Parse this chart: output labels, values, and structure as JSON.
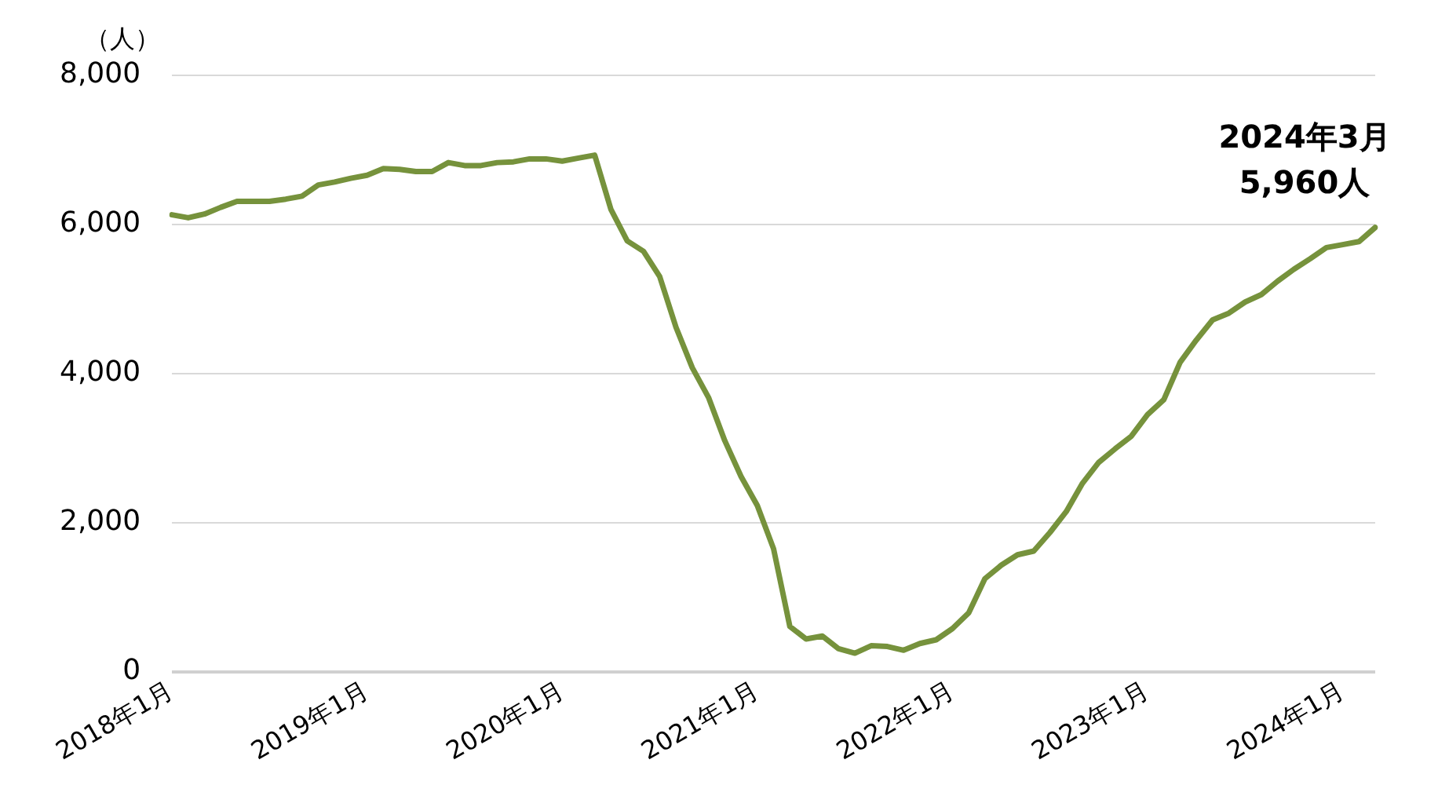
{
  "chart_data": {
    "type": "line",
    "ylabel": "（人）",
    "categories": [
      "2018年1月",
      null,
      null,
      null,
      null,
      null,
      null,
      null,
      null,
      null,
      null,
      null,
      "2019年1月",
      null,
      null,
      null,
      null,
      null,
      null,
      null,
      null,
      null,
      null,
      null,
      "2020年1月",
      null,
      null,
      null,
      null,
      null,
      null,
      null,
      null,
      null,
      null,
      null,
      "2021年1月",
      null,
      null,
      null,
      null,
      null,
      null,
      null,
      null,
      null,
      null,
      null,
      "2022年1月",
      null,
      null,
      null,
      null,
      null,
      null,
      null,
      null,
      null,
      null,
      null,
      "2023年1月",
      null,
      null,
      null,
      null,
      null,
      null,
      null,
      null,
      null,
      null,
      null,
      "2024年1月",
      null,
      null
    ],
    "series": [
      {
        "color": "#76923c",
        "values": [
          6130,
          6090,
          6140,
          6230,
          6310,
          6310,
          6310,
          6340,
          6380,
          6530,
          6570,
          6620,
          6660,
          6750,
          6740,
          6710,
          6710,
          6830,
          6790,
          6790,
          6830,
          6840,
          6880,
          6880,
          6850,
          6890,
          6930,
          6200,
          5780,
          5640,
          5300,
          4620,
          4080,
          3680,
          3100,
          2620,
          2230,
          1650,
          610,
          440,
          480,
          310,
          250,
          350,
          340,
          290,
          380,
          430,
          580,
          790,
          1250,
          1430,
          1570,
          1620,
          1870,
          2150,
          2530,
          2810,
          2990,
          3160,
          3450,
          3650,
          4150,
          4450,
          4720,
          4810,
          4960,
          5060,
          5240,
          5400,
          5540,
          5690,
          5730,
          5770,
          5960
        ]
      }
    ],
    "ylim": [
      0,
      8000
    ],
    "yticks": [
      0,
      {
        "value": 2000,
        "label": "2,000"
      },
      {
        "value": 4000,
        "label": "4,000"
      },
      {
        "value": 6000,
        "label": "6,000"
      },
      {
        "value": 8000,
        "label": "8,000"
      }
    ],
    "grid": "y",
    "legend": false,
    "marker": "none",
    "line_style": "solid",
    "annotations": [
      "2024年3月\n5,960人"
    ]
  }
}
